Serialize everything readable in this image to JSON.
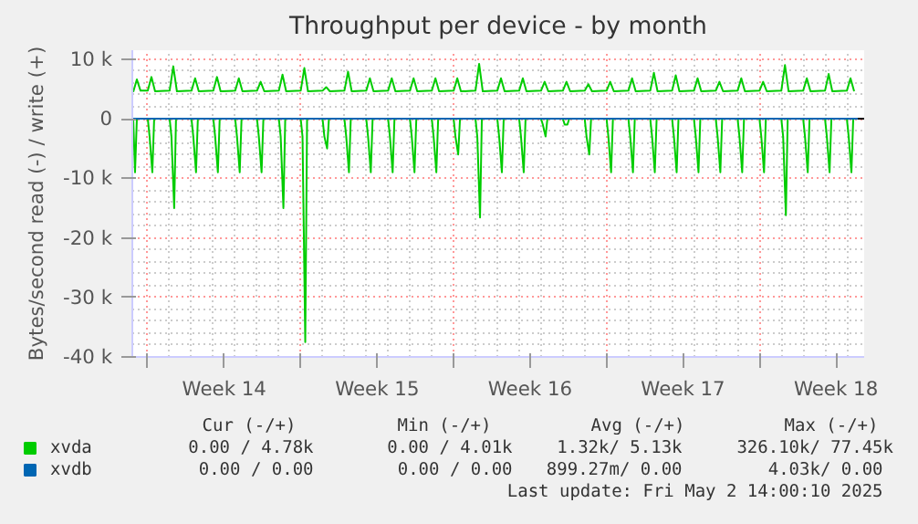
{
  "chart_data": {
    "type": "line",
    "title": "Throughput per device - by month",
    "ylabel": "Bytes/second read (-) / write (+)",
    "xlim": [
      "2025-03-30T07:00",
      "2025-05-02T19:00"
    ],
    "xticks": [
      {
        "value": "2025-03-31T00:00",
        "label": null
      },
      {
        "value": "2025-04-03T12:00",
        "label": "Week 14"
      },
      {
        "value": "2025-04-07T00:00",
        "label": null
      },
      {
        "value": "2025-04-10T12:00",
        "label": "Week 15"
      },
      {
        "value": "2025-04-14T00:00",
        "label": null
      },
      {
        "value": "2025-04-17T12:00",
        "label": "Week 16"
      },
      {
        "value": "2025-04-21T00:00",
        "label": null
      },
      {
        "value": "2025-04-24T12:00",
        "label": "Week 17"
      },
      {
        "value": "2025-04-28T00:00",
        "label": null
      },
      {
        "value": "2025-05-01T12:00",
        "label": "Week 18"
      }
    ],
    "ylim": [
      -40000,
      11500
    ],
    "yticks": [
      {
        "value": -40000,
        "label": "-40 k"
      },
      {
        "value": -30000,
        "label": "-30 k"
      },
      {
        "value": -20000,
        "label": "-20 k"
      },
      {
        "value": -10000,
        "label": "-10 k"
      },
      0,
      {
        "value": 10000,
        "label": "10 k"
      }
    ],
    "grid": true,
    "legend": "bottom",
    "ref_lines": [
      {
        "axis": "y",
        "value": 0,
        "color": "#000000"
      }
    ],
    "series": [
      {
        "name": "xvda",
        "color": "#00cc00",
        "x": [
          "2025-03-30T08:00",
          "2025-03-30T12:00",
          "2025-03-30T16:00",
          "2025-03-31T00:00",
          "2025-03-31T04:00",
          "2025-03-31T08:00",
          "2025-04-01T00:00",
          "2025-04-01T04:00",
          "2025-04-01T08:00",
          "2025-04-02T00:00",
          "2025-04-02T04:00",
          "2025-04-02T08:00",
          "2025-04-03T00:00",
          "2025-04-03T04:00",
          "2025-04-03T08:00",
          "2025-04-04T00:00",
          "2025-04-04T04:00",
          "2025-04-04T08:00",
          "2025-04-05T00:00",
          "2025-04-05T04:00",
          "2025-04-05T08:00",
          "2025-04-06T00:00",
          "2025-04-06T04:00",
          "2025-04-06T08:00",
          "2025-04-07T00:00",
          "2025-04-07T04:00",
          "2025-04-07T08:00",
          "2025-04-08T00:00",
          "2025-04-08T04:00",
          "2025-04-08T08:00",
          "2025-04-09T00:00",
          "2025-04-09T04:00",
          "2025-04-09T08:00",
          "2025-04-10T00:00",
          "2025-04-10T04:00",
          "2025-04-10T08:00",
          "2025-04-11T00:00",
          "2025-04-11T04:00",
          "2025-04-11T08:00",
          "2025-04-12T00:00",
          "2025-04-12T04:00",
          "2025-04-12T08:00",
          "2025-04-13T00:00",
          "2025-04-13T04:00",
          "2025-04-13T08:00",
          "2025-04-14T00:00",
          "2025-04-14T04:00",
          "2025-04-14T08:00",
          "2025-04-15T00:00",
          "2025-04-15T04:00",
          "2025-04-15T08:00",
          "2025-04-16T00:00",
          "2025-04-16T04:00",
          "2025-04-16T08:00",
          "2025-04-17T00:00",
          "2025-04-17T04:00",
          "2025-04-17T08:00",
          "2025-04-18T00:00",
          "2025-04-18T04:00",
          "2025-04-18T08:00",
          "2025-04-19T00:00",
          "2025-04-19T04:00",
          "2025-04-19T08:00",
          "2025-04-20T00:00",
          "2025-04-20T04:00",
          "2025-04-20T08:00",
          "2025-04-21T00:00",
          "2025-04-21T04:00",
          "2025-04-21T08:00",
          "2025-04-22T00:00",
          "2025-04-22T04:00",
          "2025-04-22T08:00",
          "2025-04-23T00:00",
          "2025-04-23T04:00",
          "2025-04-23T08:00",
          "2025-04-24T00:00",
          "2025-04-24T04:00",
          "2025-04-24T08:00",
          "2025-04-25T00:00",
          "2025-04-25T04:00",
          "2025-04-25T08:00",
          "2025-04-26T00:00",
          "2025-04-26T04:00",
          "2025-04-26T08:00",
          "2025-04-27T00:00",
          "2025-04-27T04:00",
          "2025-04-27T08:00",
          "2025-04-28T00:00",
          "2025-04-28T04:00",
          "2025-04-28T08:00",
          "2025-04-29T00:00",
          "2025-04-29T04:00",
          "2025-04-29T08:00",
          "2025-04-30T00:00",
          "2025-04-30T04:00",
          "2025-04-30T08:00",
          "2025-05-01T00:00",
          "2025-05-01T04:00",
          "2025-05-01T08:00",
          "2025-05-02T00:00",
          "2025-05-02T04:00",
          "2025-05-02T08:00"
        ],
        "values": [
          4500,
          6600,
          4700,
          4700,
          7000,
          4600,
          4700,
          8800,
          4600,
          4700,
          6800,
          4600,
          4700,
          7000,
          4600,
          4700,
          6800,
          4600,
          4700,
          6200,
          4600,
          4700,
          7400,
          4600,
          4700,
          8500,
          4600,
          4700,
          5300,
          4600,
          4700,
          7900,
          4600,
          4700,
          6800,
          4600,
          4700,
          6800,
          4600,
          4700,
          6800,
          4600,
          4700,
          6800,
          4600,
          4700,
          6800,
          4600,
          4700,
          9200,
          4600,
          4700,
          6800,
          4600,
          4700,
          6800,
          4600,
          4700,
          6200,
          4600,
          4700,
          6200,
          4600,
          4700,
          5800,
          4600,
          4700,
          6200,
          4600,
          4700,
          6800,
          4600,
          4700,
          7700,
          4600,
          4700,
          7300,
          4600,
          4700,
          6800,
          4600,
          4700,
          6200,
          4600,
          4700,
          6800,
          4600,
          4700,
          6200,
          4600,
          4700,
          9000,
          4600,
          4700,
          6800,
          4600,
          4700,
          7500,
          4600,
          4700,
          6800,
          4600
        ]
      },
      {
        "color": "#00cc00",
        "x": [
          "2025-03-30T08:00",
          "2025-03-30T10:00",
          "2025-03-30T12:00",
          "2025-03-31T00:00",
          "2025-03-31T02:00",
          "2025-03-31T05:00",
          "2025-03-31T07:00",
          "2025-04-01T00:00",
          "2025-04-01T02:00",
          "2025-04-01T05:00",
          "2025-04-01T07:00",
          "2025-04-02T00:00",
          "2025-04-02T02:00",
          "2025-04-02T05:00",
          "2025-04-02T07:00",
          "2025-04-03T00:00",
          "2025-04-03T02:00",
          "2025-04-03T05:00",
          "2025-04-03T07:00",
          "2025-04-04T00:00",
          "2025-04-04T02:00",
          "2025-04-04T05:00",
          "2025-04-04T07:00",
          "2025-04-05T00:00",
          "2025-04-05T02:00",
          "2025-04-05T05:00",
          "2025-04-05T07:00",
          "2025-04-06T00:00",
          "2025-04-06T02:00",
          "2025-04-06T05:00",
          "2025-04-06T07:00",
          "2025-04-07T00:00",
          "2025-04-07T02:00",
          "2025-04-07T05:00",
          "2025-04-07T07:00",
          "2025-04-08T00:00",
          "2025-04-08T02:00",
          "2025-04-08T05:00",
          "2025-04-08T07:00",
          "2025-04-09T00:00",
          "2025-04-09T02:00",
          "2025-04-09T05:00",
          "2025-04-09T07:00",
          "2025-04-10T00:00",
          "2025-04-10T02:00",
          "2025-04-10T05:00",
          "2025-04-10T07:00",
          "2025-04-11T00:00",
          "2025-04-11T02:00",
          "2025-04-11T05:00",
          "2025-04-11T07:00",
          "2025-04-12T00:00",
          "2025-04-12T02:00",
          "2025-04-12T05:00",
          "2025-04-12T07:00",
          "2025-04-13T00:00",
          "2025-04-13T02:00",
          "2025-04-13T05:00",
          "2025-04-13T07:00",
          "2025-04-14T00:00",
          "2025-04-14T02:00",
          "2025-04-14T05:00",
          "2025-04-14T07:00",
          "2025-04-15T00:00",
          "2025-04-15T02:00",
          "2025-04-15T05:00",
          "2025-04-15T07:00",
          "2025-04-16T00:00",
          "2025-04-16T02:00",
          "2025-04-16T05:00",
          "2025-04-16T07:00",
          "2025-04-17T00:00",
          "2025-04-17T02:00",
          "2025-04-17T05:00",
          "2025-04-17T07:00",
          "2025-04-18T00:00",
          "2025-04-18T02:00",
          "2025-04-18T05:00",
          "2025-04-18T07:00",
          "2025-04-19T00:00",
          "2025-04-19T02:00",
          "2025-04-19T05:00",
          "2025-04-19T07:00",
          "2025-04-20T00:00",
          "2025-04-20T02:00",
          "2025-04-20T05:00",
          "2025-04-20T07:00",
          "2025-04-21T00:00",
          "2025-04-21T02:00",
          "2025-04-21T05:00",
          "2025-04-21T07:00",
          "2025-04-22T00:00",
          "2025-04-22T02:00",
          "2025-04-22T05:00",
          "2025-04-22T07:00",
          "2025-04-23T00:00",
          "2025-04-23T02:00",
          "2025-04-23T05:00",
          "2025-04-23T07:00",
          "2025-04-24T00:00",
          "2025-04-24T02:00",
          "2025-04-24T05:00",
          "2025-04-24T07:00",
          "2025-04-25T00:00",
          "2025-04-25T02:00",
          "2025-04-25T05:00",
          "2025-04-25T07:00",
          "2025-04-26T00:00",
          "2025-04-26T02:00",
          "2025-04-26T05:00",
          "2025-04-26T07:00",
          "2025-04-27T00:00",
          "2025-04-27T02:00",
          "2025-04-27T05:00",
          "2025-04-27T07:00",
          "2025-04-28T00:00",
          "2025-04-28T02:00",
          "2025-04-28T05:00",
          "2025-04-28T07:00",
          "2025-04-29T00:00",
          "2025-04-29T02:00",
          "2025-04-29T05:00",
          "2025-04-29T07:00",
          "2025-04-30T00:00",
          "2025-04-30T02:00",
          "2025-04-30T05:00",
          "2025-04-30T07:00",
          "2025-05-01T00:00",
          "2025-05-01T02:00",
          "2025-05-01T05:00",
          "2025-05-01T07:00",
          "2025-05-02T00:00",
          "2025-05-02T02:00",
          "2025-05-02T05:00",
          "2025-05-02T07:00"
        ],
        "values": [
          0,
          -9000,
          0,
          0,
          -3000,
          -9000,
          0,
          0,
          -3000,
          -15000,
          0,
          0,
          -3000,
          -9000,
          0,
          0,
          -3000,
          -9000,
          0,
          0,
          -3000,
          -9000,
          0,
          0,
          -3000,
          -9000,
          0,
          0,
          -3000,
          -15000,
          0,
          0,
          -3000,
          -37500,
          0,
          0,
          -3000,
          -5000,
          0,
          0,
          -3000,
          -9000,
          0,
          0,
          -3000,
          -9000,
          0,
          0,
          -3000,
          -9000,
          0,
          0,
          -3000,
          -9000,
          0,
          0,
          -3000,
          -9000,
          0,
          0,
          -3000,
          -6000,
          0,
          0,
          -3000,
          -16600,
          0,
          0,
          -3000,
          -9000,
          0,
          0,
          -3000,
          -9000,
          0,
          0,
          -1000,
          -3000,
          0,
          0,
          -1000,
          -1000,
          0,
          0,
          -3000,
          -6000,
          0,
          0,
          -3000,
          -9000,
          0,
          0,
          -3000,
          -9000,
          0,
          0,
          -3000,
          -9000,
          0,
          0,
          -3000,
          -9000,
          0,
          0,
          -3000,
          -9000,
          0,
          0,
          -3000,
          -9000,
          0,
          0,
          -3000,
          -9000,
          0,
          0,
          -3000,
          -9000,
          0,
          0,
          -3000,
          -16200,
          0,
          0,
          -3000,
          -9000,
          0,
          0,
          -3000,
          -9000,
          0,
          0,
          -3000,
          -9000,
          0
        ]
      },
      {
        "name": "xvdb",
        "color": "#0066b3",
        "x": [
          "2025-03-30T08:00",
          "2025-05-02T12:00"
        ],
        "values": [
          0,
          0
        ]
      }
    ],
    "annotations": [
      "Cur (-/+)",
      "Min (-/+)",
      "Avg (-/+)",
      "Max (-/+)",
      "0.00 /  4.78k",
      "0.00 /  4.01k",
      "1.32k/  5.13k",
      "326.10k/ 77.45k",
      "0.00 /  0.00",
      "0.00 /  0.00",
      "899.27m/  0.00",
      "4.03k/  0.00",
      "Last update: Fri May  2 14:00:10 2025"
    ]
  }
}
